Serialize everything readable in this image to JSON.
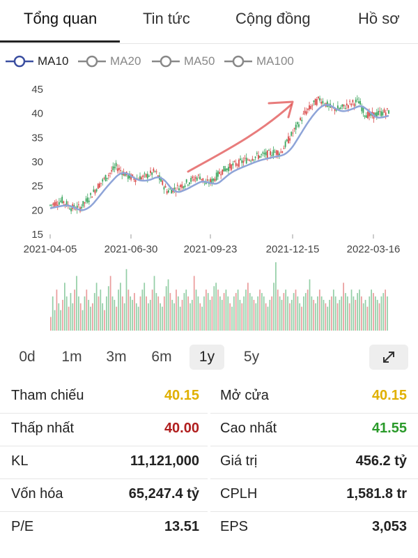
{
  "tabs": [
    "Tổng quan",
    "Tin tức",
    "Cộng đồng",
    "Hồ sơ"
  ],
  "ma_legend": [
    {
      "label": "MA10",
      "color": "#3a4ea0",
      "active": true
    },
    {
      "label": "MA20",
      "color": "#888888",
      "active": false
    },
    {
      "label": "MA50",
      "color": "#888888",
      "active": false
    },
    {
      "label": "MA100",
      "color": "#888888",
      "active": false
    }
  ],
  "chart_data": {
    "type": "candlestick",
    "yaxis_ticks": [
      "45",
      "40",
      "35",
      "30",
      "25",
      "20",
      "15"
    ],
    "ylim": [
      15,
      45
    ],
    "xaxis_ticks": [
      "2021-04-05",
      "2021-06-30",
      "2021-09-23",
      "2021-12-15",
      "2022-03-16"
    ],
    "price_path": [
      [
        0,
        21
      ],
      [
        8,
        22
      ],
      [
        14,
        20.5
      ],
      [
        20,
        20.5
      ],
      [
        26,
        22.5
      ],
      [
        32,
        25
      ],
      [
        38,
        27
      ],
      [
        44,
        29
      ],
      [
        48,
        28
      ],
      [
        52,
        27
      ],
      [
        58,
        26.5
      ],
      [
        64,
        27
      ],
      [
        70,
        28
      ],
      [
        74,
        26
      ],
      [
        78,
        24
      ],
      [
        84,
        24.5
      ],
      [
        90,
        25.5
      ],
      [
        96,
        26.5
      ],
      [
        100,
        27
      ],
      [
        104,
        25.5
      ],
      [
        108,
        26
      ],
      [
        114,
        28
      ],
      [
        120,
        29
      ],
      [
        128,
        30
      ],
      [
        136,
        31
      ],
      [
        144,
        31.5
      ],
      [
        150,
        32
      ],
      [
        154,
        32
      ],
      [
        158,
        34
      ],
      [
        162,
        36
      ],
      [
        166,
        38
      ],
      [
        170,
        40
      ],
      [
        176,
        42
      ],
      [
        180,
        43
      ],
      [
        184,
        42
      ],
      [
        188,
        41
      ],
      [
        194,
        41
      ],
      [
        200,
        42
      ],
      [
        206,
        42.5
      ],
      [
        210,
        40
      ],
      [
        214,
        39.5
      ],
      [
        220,
        40
      ],
      [
        226,
        40.5
      ]
    ],
    "volume_levels": [
      0.2,
      0.5,
      0.3,
      0.6,
      0.4,
      0.3,
      0.45,
      0.7,
      0.5,
      0.35,
      0.55,
      0.4,
      0.6,
      0.8,
      0.5,
      0.4,
      0.3,
      0.5,
      0.6,
      0.45,
      0.35,
      0.4,
      0.55,
      0.7,
      0.5,
      0.6,
      0.4,
      0.3,
      0.5,
      0.65,
      0.8,
      0.5,
      0.45,
      0.35,
      0.6,
      0.7,
      0.5,
      0.4,
      0.9,
      0.6,
      0.5,
      0.45,
      0.55,
      0.4,
      0.35,
      0.5,
      0.6,
      0.7,
      0.5,
      0.4,
      0.45,
      0.6,
      0.8,
      0.55,
      0.5,
      0.4,
      0.35,
      0.5,
      0.65,
      0.75,
      0.55,
      0.45,
      0.4,
      0.6,
      0.5,
      0.35,
      0.45,
      0.55,
      0.6,
      0.5,
      0.4,
      0.45,
      0.8,
      0.6,
      0.5,
      0.4,
      0.35,
      0.5,
      0.6,
      0.55,
      0.45,
      0.5,
      0.65,
      0.7,
      0.6,
      0.5,
      0.45,
      0.55,
      0.6,
      0.5,
      0.4,
      0.35,
      0.5,
      0.55,
      0.6,
      0.45,
      0.4,
      0.5,
      0.6,
      0.7,
      0.55,
      0.5,
      0.45,
      0.4,
      0.5,
      0.6,
      0.55,
      0.5,
      0.4,
      0.35,
      0.45,
      0.5,
      0.7,
      1.0,
      0.6,
      0.5,
      0.45,
      0.55,
      0.6,
      0.5,
      0.4,
      0.45,
      0.55,
      0.6,
      0.5,
      0.4,
      0.35,
      0.5,
      0.55,
      0.6,
      0.75,
      0.5,
      0.45,
      0.4,
      0.5,
      0.6,
      0.5,
      0.45,
      0.4,
      0.35,
      0.45,
      0.5,
      0.6,
      0.5,
      0.4,
      0.45,
      0.5,
      0.7,
      0.55,
      0.5,
      0.4,
      0.6,
      0.5,
      0.45,
      0.55,
      0.6,
      0.5,
      0.4,
      0.45,
      0.35,
      0.5,
      0.6,
      0.55,
      0.5,
      0.45,
      0.4,
      0.5,
      0.55,
      0.6,
      0.5
    ],
    "colors": {
      "up": "#3aa55d",
      "down": "#d94a4a",
      "ma10": "#8ea4d8",
      "arrow": "#e05050"
    }
  },
  "ranges": [
    {
      "label": "0d",
      "active": false
    },
    {
      "label": "1m",
      "active": false
    },
    {
      "label": "3m",
      "active": false
    },
    {
      "label": "6m",
      "active": false
    },
    {
      "label": "1y",
      "active": true
    },
    {
      "label": "5y",
      "active": false
    }
  ],
  "expand_icon": "expand-arrows-icon",
  "stats": [
    {
      "label": "Tham chiếu",
      "value": "40.15",
      "color": "#e0b000"
    },
    {
      "label": "Mở cửa",
      "value": "40.15",
      "color": "#e0b000"
    },
    {
      "label": "Thấp nhất",
      "value": "40.00",
      "color": "#b01e1e"
    },
    {
      "label": "Cao nhất",
      "value": "41.55",
      "color": "#2a9a2a"
    },
    {
      "label": "KL",
      "value": "11,121,000",
      "color": "#222222"
    },
    {
      "label": "Giá trị",
      "value": "456.2 tỷ",
      "color": "#222222"
    },
    {
      "label": "Vốn hóa",
      "value": "65,247.4 tỷ",
      "color": "#222222"
    },
    {
      "label": "CPLH",
      "value": "1,581.8 tr",
      "color": "#222222"
    },
    {
      "label": "P/E",
      "value": "13.51",
      "color": "#222222"
    },
    {
      "label": "EPS",
      "value": "3,053",
      "color": "#222222"
    }
  ]
}
